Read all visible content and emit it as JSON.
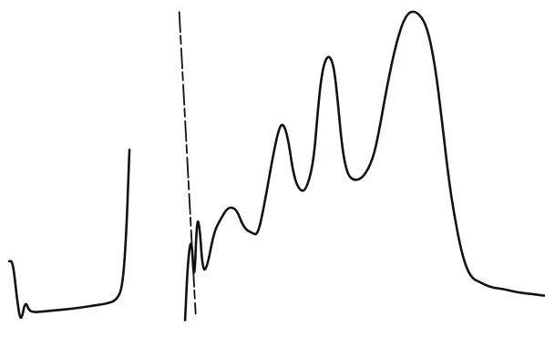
{
  "chart_data": {
    "type": "line",
    "title": "",
    "xlabel": "",
    "ylabel": "",
    "xlim": [
      0,
      100
    ],
    "ylim": [
      0,
      100
    ],
    "grid": false,
    "axes_visible": false,
    "line_color": "#111111",
    "background": "#ffffff",
    "series": [
      {
        "values_note_free": true,
        "x": [
          0,
          0.7,
          1.5,
          2.2,
          3.0,
          3.7,
          4.5,
          5.4,
          8.4,
          11.7,
          15.1,
          18.4,
          20.1,
          21.2,
          21.9,
          22.5
        ],
        "y": [
          22,
          22,
          10,
          3,
          10,
          7,
          6.5,
          6.5,
          7,
          7.5,
          8.3,
          9.1,
          10.2,
          14,
          30,
          56
        ]
      },
      {
        "x": [
          32.9,
          33.4,
          34.1,
          34.6,
          35.1,
          35.6,
          36.2,
          37.0,
          38.3,
          39.6,
          40.7,
          41.6,
          42.6,
          43.9,
          45.5,
          46.5,
          47.8,
          49.3,
          50.5,
          51.3,
          52.2,
          53.2,
          54.3,
          55.5,
          56.9,
          57.7,
          58.5,
          59.5,
          60.5,
          61.2,
          62.2,
          63.2,
          64.5,
          66.2,
          68.0,
          69.2,
          70.6,
          72.4,
          74.2,
          76.1,
          78.1,
          79.6,
          80.9,
          82.1,
          83.3,
          84.8,
          86.3,
          88.1,
          90.1,
          92.5,
          95.0,
          97.7,
          100
        ],
        "y": [
          4,
          22,
          30,
          14,
          35,
          33,
          19,
          20,
          31,
          35,
          38,
          38.5,
          37.5,
          32,
          30.5,
          30,
          40,
          54,
          63,
          64,
          59,
          48,
          43.5,
          43.5,
          52,
          68,
          80,
          85,
          83,
          75,
          57,
          48.5,
          46.5,
          47.5,
          53,
          62,
          75,
          89,
          97.5,
          98.5,
          94,
          82,
          65,
          48,
          35,
          23,
          17,
          15.5,
          14,
          13.5,
          12.5,
          12,
          11.5
        ]
      }
    ],
    "spike_marker": {
      "x": 31.8,
      "y_top": 98,
      "y_bottom": 6
    }
  }
}
